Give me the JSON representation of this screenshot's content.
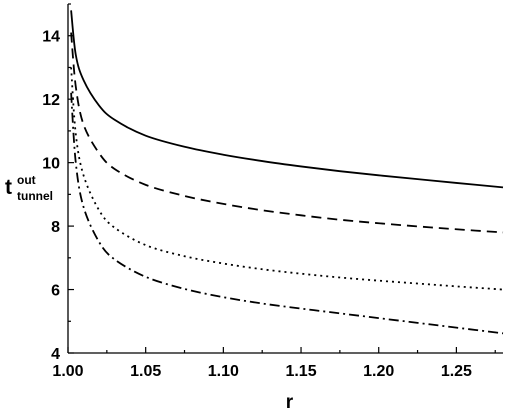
{
  "chart_data": {
    "type": "line",
    "title": "",
    "xlabel": "r",
    "ylabel": {
      "base": "t",
      "superscript": "out",
      "subscript": "tunnel"
    },
    "xlim": [
      1.0,
      1.28
    ],
    "ylim": [
      4,
      15
    ],
    "x_ticks": [
      1.0,
      1.05,
      1.1,
      1.15,
      1.2,
      1.25
    ],
    "x_tick_labels": [
      "1.00",
      "1.05",
      "1.10",
      "1.15",
      "1.20",
      "1.25"
    ],
    "y_ticks": [
      4,
      6,
      8,
      10,
      12,
      14
    ],
    "y_tick_labels": [
      "4",
      "6",
      "8",
      "10",
      "12",
      "14"
    ],
    "grid": false,
    "legend": "none",
    "x": [
      1.002,
      1.005,
      1.01,
      1.02,
      1.03,
      1.05,
      1.075,
      1.1,
      1.125,
      1.15,
      1.175,
      1.2,
      1.225,
      1.25,
      1.28
    ],
    "series": [
      {
        "style": "solid",
        "color": "#000000",
        "values": [
          14.8,
          13.4,
          12.6,
          11.8,
          11.35,
          10.85,
          10.5,
          10.25,
          10.05,
          9.88,
          9.73,
          9.6,
          9.48,
          9.36,
          9.22
        ]
      },
      {
        "style": "dashed",
        "color": "#000000",
        "values": [
          14.1,
          12.4,
          11.2,
          10.3,
          9.8,
          9.3,
          8.95,
          8.7,
          8.5,
          8.34,
          8.2,
          8.09,
          7.99,
          7.9,
          7.8
        ]
      },
      {
        "style": "dotted",
        "color": "#000000",
        "values": [
          13.0,
          10.9,
          9.6,
          8.5,
          7.95,
          7.4,
          7.05,
          6.82,
          6.64,
          6.5,
          6.38,
          6.28,
          6.19,
          6.1,
          6.0
        ]
      },
      {
        "style": "dash-dot",
        "color": "#000000",
        "values": [
          12.2,
          10.0,
          8.6,
          7.5,
          6.95,
          6.4,
          6.02,
          5.76,
          5.56,
          5.4,
          5.25,
          5.1,
          4.95,
          4.8,
          4.62
        ]
      }
    ]
  }
}
